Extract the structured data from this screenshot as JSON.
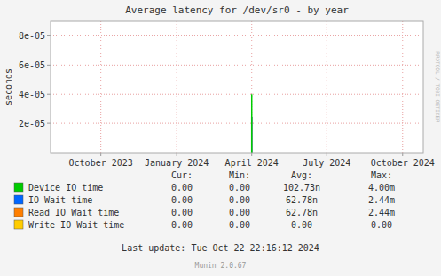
{
  "chart_data": {
    "type": "bar",
    "title": "Average latency for /dev/sr0 - by year",
    "y_label": "seconds",
    "x": [
      1711929600
    ],
    "series": [
      {
        "name": "Device IO time",
        "color": "#00cc00",
        "values": [
          4e-05
        ],
        "stats": [
          "0.00",
          "0.00",
          "102.73n",
          "4.00m"
        ]
      },
      {
        "name": "IO Wait time",
        "color": "#0066ff",
        "values": [
          2.44e-05
        ],
        "stats": [
          "0.00",
          "0.00",
          "62.78n",
          "2.44m"
        ]
      },
      {
        "name": "Read IO Wait time",
        "color": "#ff7f00",
        "values": [
          2.44e-05
        ],
        "stats": [
          "0.00",
          "0.00",
          "62.78n",
          "2.44m"
        ]
      },
      {
        "name": "Write IO Wait time",
        "color": "#ffcc00",
        "values": [
          0
        ],
        "stats": [
          "0.00",
          "0.00",
          "0.00",
          "0.00"
        ]
      }
    ],
    "stats_header": [
      "Cur:",
      "Min:",
      "Avg:",
      "Max:"
    ],
    "xlim": [
      1690848000,
      1729900800
    ],
    "xticks": [
      {
        "value": 1696118400,
        "label": "October 2023"
      },
      {
        "value": 1704067200,
        "label": "January 2024"
      },
      {
        "value": 1711929600,
        "label": "April 2024"
      },
      {
        "value": 1719792000,
        "label": "July 2024"
      },
      {
        "value": 1727740800,
        "label": "October 2024"
      }
    ],
    "ylim": [
      0,
      9e-05
    ],
    "yticks": [
      {
        "value": 2e-05,
        "label": "2e-05"
      },
      {
        "value": 4e-05,
        "label": "4e-05"
      },
      {
        "value": 6e-05,
        "label": "6e-05"
      },
      {
        "value": 8e-05,
        "label": "8e-05"
      }
    ],
    "grid": true,
    "watermark": "RRDTOOL / TOBI OETIKER",
    "footer": "Last update: Tue Oct 22 22:16:12 2024",
    "version": "Munin 2.0.67"
  }
}
